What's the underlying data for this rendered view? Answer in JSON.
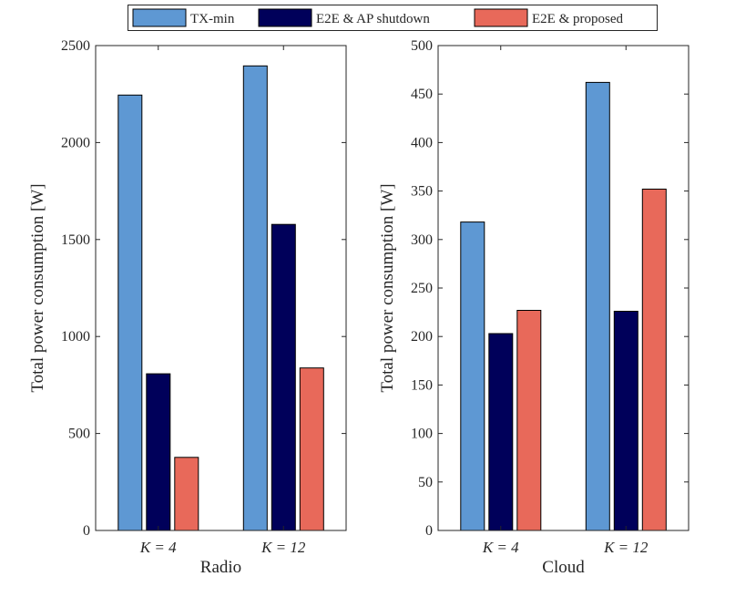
{
  "legend": {
    "entries": [
      {
        "label": "TX-min",
        "color": "#5E98D3"
      },
      {
        "label": "E2E & AP shutdown",
        "color": "#00005A"
      },
      {
        "label": "E2E & proposed",
        "color": "#E8695A"
      }
    ]
  },
  "chart_data": [
    {
      "type": "bar",
      "title": "",
      "xlabel": "Radio",
      "ylabel": "Total power consumption [W]",
      "categories": [
        "K = 4",
        "K = 12"
      ],
      "series": [
        {
          "name": "TX-min",
          "values": [
            2245,
            2395
          ]
        },
        {
          "name": "E2E & AP shutdown",
          "values": [
            808,
            1578
          ]
        },
        {
          "name": "E2E & proposed",
          "values": [
            377,
            838
          ]
        }
      ],
      "ylim": [
        0,
        2500
      ],
      "yticks": [
        0,
        500,
        1000,
        1500,
        2000,
        2500
      ],
      "grid": false
    },
    {
      "type": "bar",
      "title": "",
      "xlabel": "Cloud",
      "ylabel": "Total power consumption [W]",
      "categories": [
        "K = 4",
        "K = 12"
      ],
      "series": [
        {
          "name": "TX-min",
          "values": [
            318,
            462
          ]
        },
        {
          "name": "E2E & AP shutdown",
          "values": [
            203,
            226
          ]
        },
        {
          "name": "E2E & proposed",
          "values": [
            227,
            352
          ]
        }
      ],
      "ylim": [
        0,
        500
      ],
      "yticks": [
        0,
        50,
        100,
        150,
        200,
        250,
        300,
        350,
        400,
        450,
        500
      ],
      "grid": false
    }
  ]
}
